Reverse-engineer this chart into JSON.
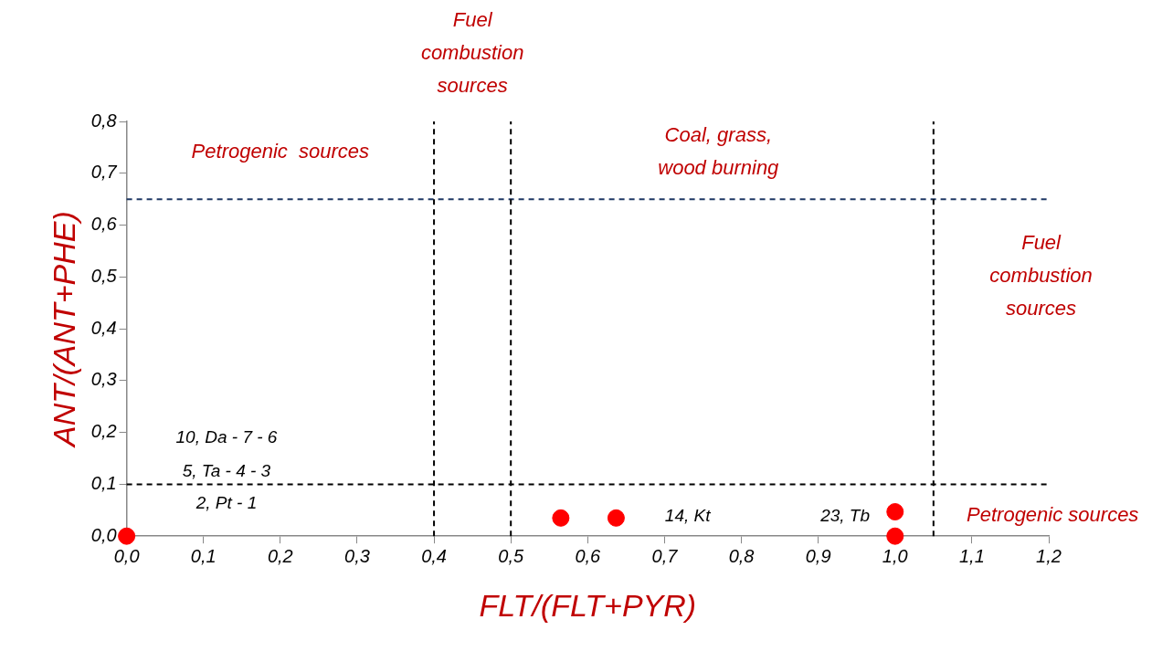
{
  "chart_data": {
    "type": "scatter",
    "xlabel": "FLT/(FLT+PYR)",
    "ylabel": "ANT/(ANT+PHE)",
    "x": [
      0,
      0.565,
      0.637,
      1.0,
      1.0
    ],
    "values": [
      0,
      0.035,
      0.035,
      0.047,
      0
    ],
    "color": "#ff0000",
    "marker": "circle",
    "grid": false,
    "legend": false,
    "xlim": [
      0,
      1.2
    ],
    "ylim": [
      0,
      0.8
    ],
    "xticks": [
      {
        "value": 0,
        "label": "0,0"
      },
      {
        "value": 0.1,
        "label": "0,1"
      },
      {
        "value": 0.2,
        "label": "0,2"
      },
      {
        "value": 0.3,
        "label": "0,3"
      },
      {
        "value": 0.4,
        "label": "0,4"
      },
      {
        "value": 0.5,
        "label": "0,5"
      },
      {
        "value": 0.6,
        "label": "0,6"
      },
      {
        "value": 0.7,
        "label": "0,7"
      },
      {
        "value": 0.8,
        "label": "0,8"
      },
      {
        "value": 0.9,
        "label": "0,9"
      },
      {
        "value": 1.0,
        "label": "1,0"
      },
      {
        "value": 1.1,
        "label": "1,1"
      },
      {
        "value": 1.2,
        "label": "1,2"
      }
    ],
    "yticks": [
      {
        "value": 0,
        "label": "0,0"
      },
      {
        "value": 0.1,
        "label": "0,1"
      },
      {
        "value": 0.2,
        "label": "0,2"
      },
      {
        "value": 0.3,
        "label": "0,3"
      },
      {
        "value": 0.4,
        "label": "0,4"
      },
      {
        "value": 0.5,
        "label": "0,5"
      },
      {
        "value": 0.6,
        "label": "0,6"
      },
      {
        "value": 0.7,
        "label": "0,7"
      },
      {
        "value": 0.8,
        "label": "0,8"
      }
    ],
    "ref_lines": [
      {
        "axis": "y",
        "value": 0.65,
        "color": "#1f3864",
        "line_style": "dashed"
      },
      {
        "axis": "y",
        "value": 0.1,
        "color": "#000000",
        "line_style": "dashed"
      },
      {
        "axis": "x",
        "value": 0.4,
        "color": "#000000",
        "line_style": "dashed"
      },
      {
        "axis": "x",
        "value": 0.5,
        "color": "#000000",
        "line_style": "dashed"
      },
      {
        "axis": "x",
        "value": 1.05,
        "color": "#000000",
        "line_style": "dashed"
      }
    ],
    "annotations": [
      "Petrogenic  sources",
      "Fuel\ncombustion\nsources",
      "Coal, grass,\nwood burning",
      "Fuel\ncombustion\nsources",
      "Petrogenic sources",
      "10, Da - 7 - 6",
      "5, Ta - 4 - 3",
      "2, Pt - 1",
      "14, Kt",
      "23, Tb"
    ]
  }
}
